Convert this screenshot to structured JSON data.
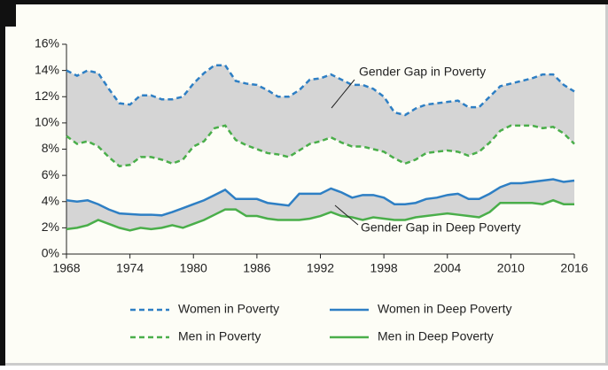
{
  "chart_data": {
    "type": "line",
    "x": [
      1968,
      1969,
      1970,
      1971,
      1972,
      1973,
      1974,
      1975,
      1976,
      1977,
      1978,
      1979,
      1980,
      1981,
      1982,
      1983,
      1984,
      1985,
      1986,
      1987,
      1988,
      1989,
      1990,
      1991,
      1992,
      1993,
      1994,
      1995,
      1996,
      1997,
      1998,
      1999,
      2000,
      2001,
      2002,
      2003,
      2004,
      2005,
      2006,
      2007,
      2008,
      2009,
      2010,
      2011,
      2012,
      2013,
      2014,
      2015,
      2016
    ],
    "series": [
      {
        "name": "Women in Poverty",
        "color": "#2e7fc4",
        "dashed": true,
        "values": [
          14.0,
          13.6,
          14.0,
          13.8,
          12.6,
          11.5,
          11.4,
          12.1,
          12.1,
          11.8,
          11.8,
          12.0,
          13.0,
          13.8,
          14.4,
          14.4,
          13.2,
          13.0,
          12.9,
          12.5,
          12.0,
          12.0,
          12.5,
          13.3,
          13.4,
          13.7,
          13.3,
          12.9,
          12.9,
          12.6,
          12.0,
          10.8,
          10.6,
          11.1,
          11.4,
          11.5,
          11.6,
          11.7,
          11.2,
          11.2,
          12.0,
          12.8,
          13.0,
          13.2,
          13.4,
          13.7,
          13.7,
          12.9,
          12.4
        ]
      },
      {
        "name": "Women in Deep Poverty",
        "color": "#2e7fc4",
        "dashed": false,
        "values": [
          4.1,
          4.0,
          4.1,
          3.8,
          3.4,
          3.1,
          3.05,
          3.0,
          3.0,
          2.95,
          3.2,
          3.5,
          3.8,
          4.1,
          4.5,
          4.9,
          4.2,
          4.2,
          4.2,
          3.9,
          3.8,
          3.7,
          4.6,
          4.6,
          4.6,
          5.0,
          4.7,
          4.3,
          4.5,
          4.5,
          4.3,
          3.8,
          3.8,
          3.9,
          4.2,
          4.3,
          4.5,
          4.6,
          4.2,
          4.2,
          4.6,
          5.1,
          5.4,
          5.4,
          5.5,
          5.6,
          5.7,
          5.5,
          5.6
        ]
      },
      {
        "name": "Men in Poverty",
        "color": "#4aae4a",
        "dashed": true,
        "values": [
          9.0,
          8.4,
          8.6,
          8.2,
          7.4,
          6.7,
          6.8,
          7.4,
          7.4,
          7.2,
          6.9,
          7.2,
          8.2,
          8.6,
          9.6,
          9.8,
          8.7,
          8.3,
          8.0,
          7.7,
          7.6,
          7.4,
          7.9,
          8.4,
          8.6,
          8.9,
          8.5,
          8.2,
          8.2,
          8.0,
          7.8,
          7.3,
          6.9,
          7.2,
          7.7,
          7.8,
          7.9,
          7.8,
          7.5,
          7.8,
          8.5,
          9.4,
          9.8,
          9.8,
          9.8,
          9.6,
          9.7,
          9.2,
          8.4
        ]
      },
      {
        "name": "Men in Deep Poverty",
        "color": "#4aae4a",
        "dashed": false,
        "values": [
          1.9,
          2.0,
          2.2,
          2.6,
          2.3,
          2.0,
          1.8,
          2.0,
          1.9,
          2.0,
          2.2,
          2.0,
          2.3,
          2.6,
          3.0,
          3.4,
          3.4,
          2.9,
          2.9,
          2.7,
          2.6,
          2.6,
          2.6,
          2.7,
          2.9,
          3.2,
          2.9,
          2.8,
          2.6,
          2.8,
          2.7,
          2.6,
          2.6,
          2.8,
          2.9,
          3.0,
          3.1,
          3.0,
          2.9,
          2.8,
          3.2,
          3.9,
          3.9,
          3.9,
          3.9,
          3.8,
          4.1,
          3.8,
          3.8
        ]
      }
    ],
    "annotations": [
      "Gender Gap in Poverty",
      "Gender Gap in Deep Poverty"
    ],
    "gap_fill": "#d5d5d5",
    "xlim": [
      1968,
      2016
    ],
    "xticks": [
      1968,
      1974,
      1980,
      1986,
      1992,
      1998,
      2004,
      2010,
      2016
    ],
    "ylim": [
      0,
      16
    ],
    "yticks": [
      {
        "value": 0,
        "label": "0%"
      },
      {
        "value": 2,
        "label": "2%"
      },
      {
        "value": 4,
        "label": "4%"
      },
      {
        "value": 6,
        "label": "6%"
      },
      {
        "value": 8,
        "label": "8%"
      },
      {
        "value": 10,
        "label": "10%"
      },
      {
        "value": 12,
        "label": "12%"
      },
      {
        "value": 14,
        "label": "14%"
      },
      {
        "value": 16,
        "label": "16%"
      }
    ]
  }
}
